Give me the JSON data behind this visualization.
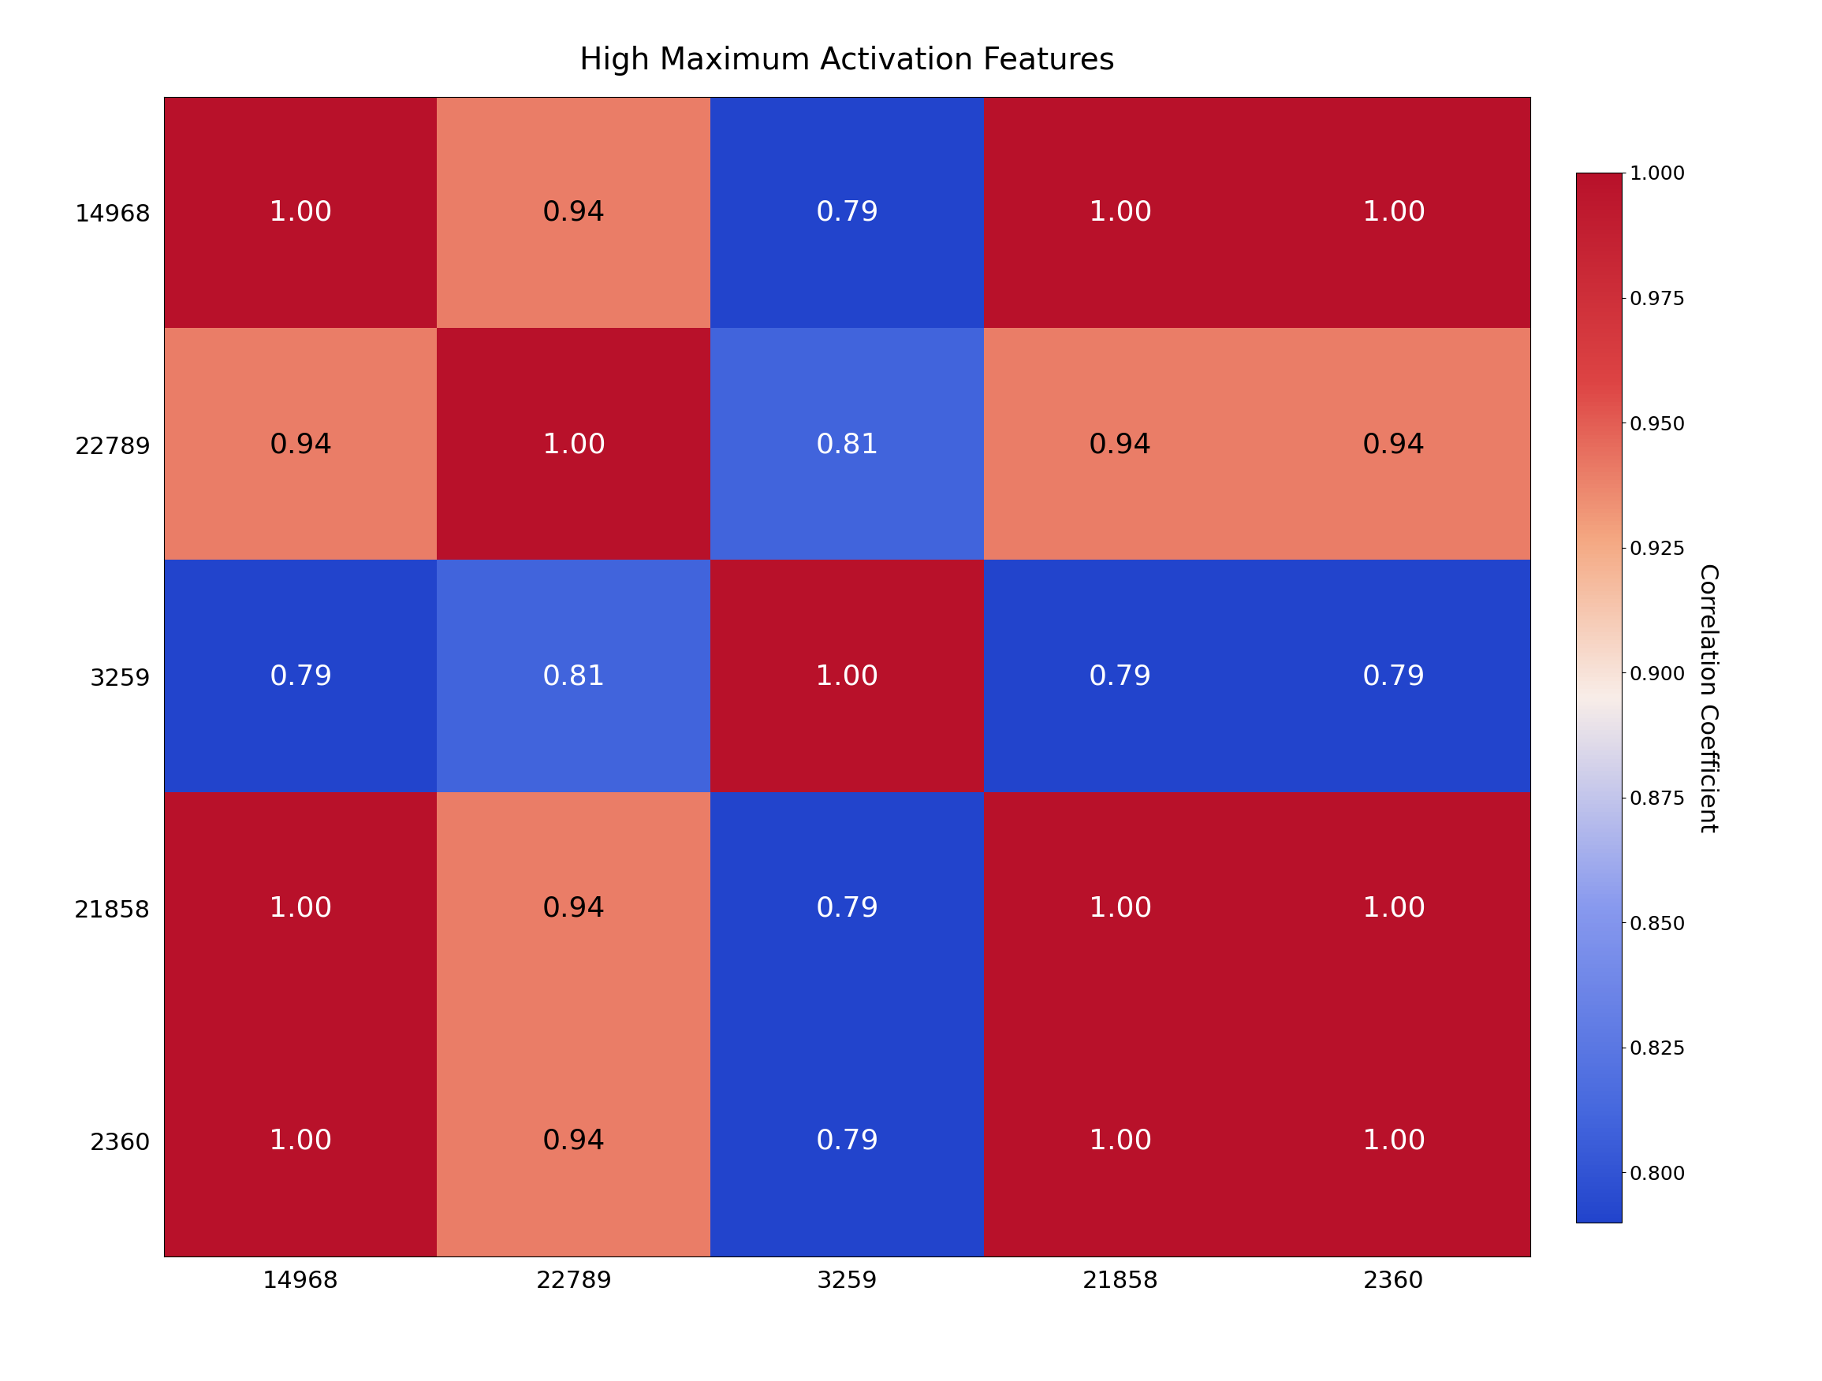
{
  "title": "High Maximum Activation Features",
  "labels": [
    "14968",
    "22789",
    "3259",
    "21858",
    "2360"
  ],
  "matrix": [
    [
      1.0,
      0.94,
      0.79,
      1.0,
      1.0
    ],
    [
      0.94,
      1.0,
      0.81,
      0.94,
      0.94
    ],
    [
      0.79,
      0.81,
      1.0,
      0.79,
      0.79
    ],
    [
      1.0,
      0.94,
      0.79,
      1.0,
      1.0
    ],
    [
      1.0,
      0.94,
      0.79,
      1.0,
      1.0
    ]
  ],
  "vmin": 0.79,
  "vmax": 1.0,
  "colorbar_label": "Correlation Coefficient",
  "title_fontsize": 28,
  "label_fontsize": 22,
  "annot_fontsize": 26,
  "colorbar_tick_fontsize": 18,
  "colorbar_label_fontsize": 22,
  "background_color": "#ffffff",
  "colorbar_ticks": [
    0.8,
    0.825,
    0.85,
    0.875,
    0.9,
    0.925,
    0.95,
    0.975,
    1.0
  ],
  "red_color": "#B22234",
  "blue_color": "#3333BB",
  "mid_color": "#F5C9B0",
  "white_color": "#F0EBE8"
}
